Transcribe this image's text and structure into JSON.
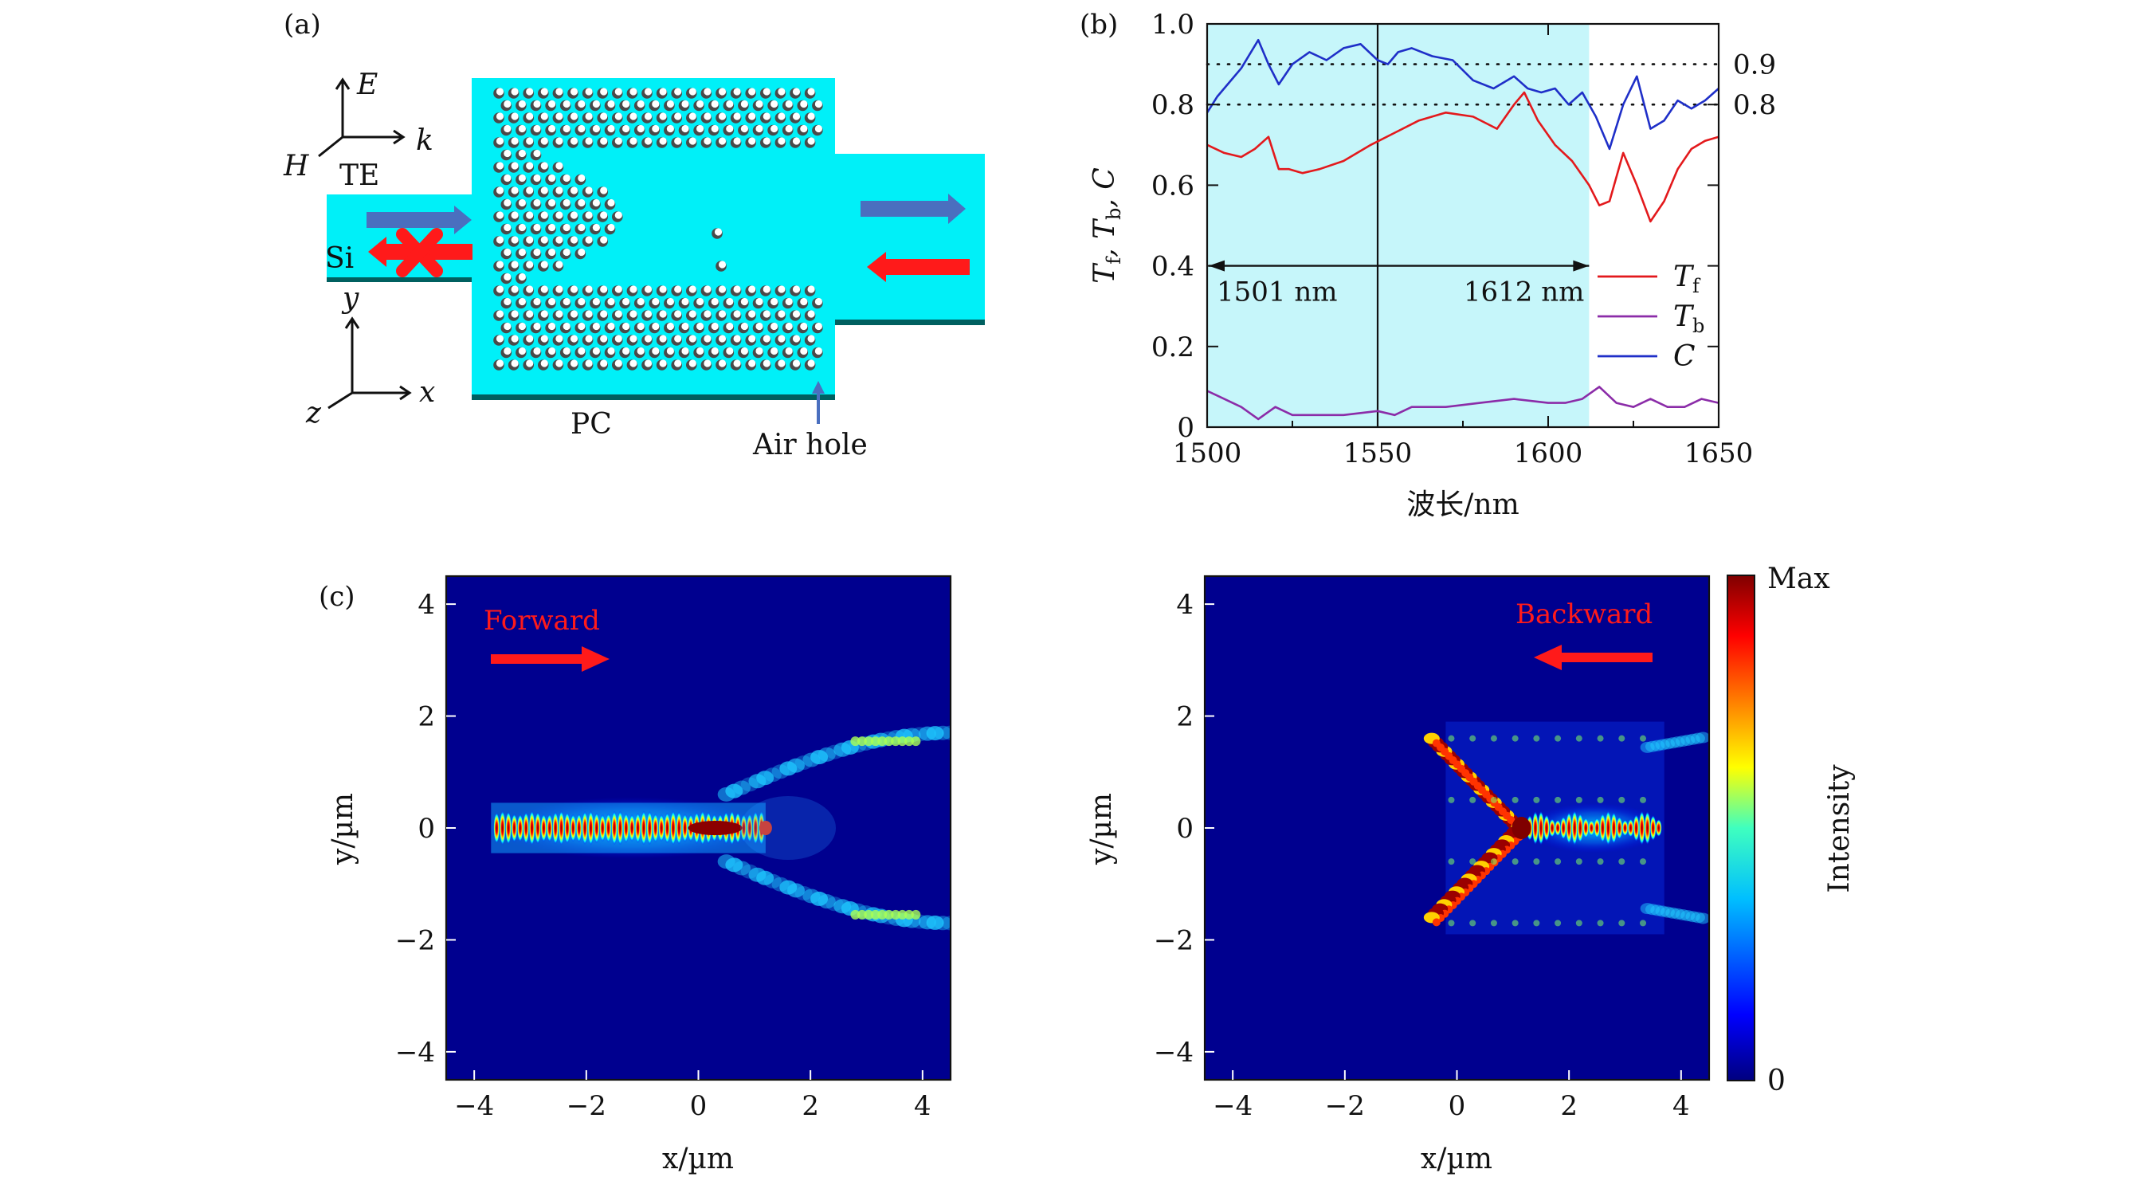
{
  "panels": {
    "a": "(a)",
    "b": "(b)",
    "c": "(c)"
  },
  "schematic": {
    "axis_E": "E",
    "axis_k": "k",
    "axis_H": "H",
    "mode": "TE",
    "si_label": "Si",
    "axis_y": "y",
    "axis_x": "x",
    "axis_z": "z",
    "pc_label": "PC",
    "air_hole_label": "Air hole",
    "colors": {
      "slab": "#00f0f8",
      "edge": "#006060",
      "arrow_blue": "#4a6fbf",
      "arrow_red": "#ff1a1a",
      "hole": "#444444"
    },
    "icons": [
      "forward-arrow-icon",
      "backward-arrow-icon",
      "blocked-cross-icon"
    ]
  },
  "chart_data": [
    {
      "type": "line",
      "xlabel": "波长/nm",
      "ylabel_parts": [
        "T",
        "f",
        ", T",
        "b",
        ", C"
      ],
      "xlim": [
        1500,
        1650
      ],
      "ylim": [
        0,
        1.0
      ],
      "xticks": [
        "1500",
        "1550",
        "1600",
        "1650"
      ],
      "yticks": [
        "0",
        "0.2",
        "0.4",
        "0.6",
        "0.8",
        "1.0"
      ],
      "shaded_band": {
        "from": 1500,
        "to": 1612,
        "color": "#c6f6fa"
      },
      "vline_x": 1550,
      "hlines": [
        {
          "y": 0.9,
          "label": "0.9"
        },
        {
          "y": 0.8,
          "label": "0.8"
        }
      ],
      "annotation": {
        "left": "1501 nm",
        "right": "1612 nm",
        "y": 0.4
      },
      "series": [
        {
          "name": "T",
          "sub": "f",
          "color": "#e3191c",
          "x": [
            1500,
            1505,
            1510,
            1514,
            1518,
            1521,
            1524,
            1528,
            1533,
            1540,
            1548,
            1555,
            1562,
            1570,
            1578,
            1585,
            1590,
            1593,
            1597,
            1602,
            1607,
            1612,
            1615,
            1618,
            1622,
            1626,
            1630,
            1634,
            1638,
            1642,
            1646,
            1650
          ],
          "y": [
            0.7,
            0.68,
            0.67,
            0.69,
            0.72,
            0.64,
            0.64,
            0.63,
            0.64,
            0.66,
            0.7,
            0.73,
            0.76,
            0.78,
            0.77,
            0.74,
            0.8,
            0.83,
            0.76,
            0.7,
            0.66,
            0.6,
            0.55,
            0.56,
            0.68,
            0.6,
            0.51,
            0.56,
            0.64,
            0.69,
            0.71,
            0.72
          ]
        },
        {
          "name": "T",
          "sub": "b",
          "color": "#8b2ca8",
          "x": [
            1500,
            1505,
            1510,
            1515,
            1520,
            1525,
            1530,
            1540,
            1550,
            1555,
            1560,
            1570,
            1580,
            1590,
            1600,
            1605,
            1610,
            1615,
            1620,
            1625,
            1630,
            1635,
            1640,
            1645,
            1650
          ],
          "y": [
            0.09,
            0.07,
            0.05,
            0.02,
            0.05,
            0.03,
            0.03,
            0.03,
            0.04,
            0.03,
            0.05,
            0.05,
            0.06,
            0.07,
            0.06,
            0.06,
            0.07,
            0.1,
            0.06,
            0.05,
            0.07,
            0.05,
            0.05,
            0.07,
            0.06
          ]
        },
        {
          "name": "C",
          "sub": "",
          "color": "#1f2fc8",
          "x": [
            1500,
            1503,
            1506,
            1510,
            1515,
            1518,
            1521,
            1525,
            1530,
            1535,
            1540,
            1545,
            1550,
            1553,
            1556,
            1560,
            1566,
            1572,
            1578,
            1584,
            1590,
            1594,
            1598,
            1602,
            1606,
            1610,
            1614,
            1618,
            1622,
            1626,
            1630,
            1634,
            1638,
            1642,
            1646,
            1650
          ],
          "y": [
            0.78,
            0.82,
            0.85,
            0.89,
            0.96,
            0.9,
            0.85,
            0.9,
            0.93,
            0.91,
            0.94,
            0.95,
            0.91,
            0.9,
            0.93,
            0.94,
            0.92,
            0.91,
            0.86,
            0.84,
            0.87,
            0.84,
            0.83,
            0.84,
            0.8,
            0.83,
            0.77,
            0.69,
            0.8,
            0.87,
            0.74,
            0.76,
            0.81,
            0.79,
            0.81,
            0.84
          ]
        }
      ]
    },
    {
      "type": "heatmap",
      "title": "Forward",
      "xlabel": "x/µm",
      "ylabel": "y/µm",
      "xlim": [
        -4.5,
        4.5
      ],
      "ylim": [
        -4.5,
        4.5
      ],
      "xticks": [
        "−4",
        "−2",
        "0",
        "2",
        "4"
      ],
      "yticks": [
        "−4",
        "−2",
        "0",
        "2",
        "4"
      ],
      "arrow_direction": "right"
    },
    {
      "type": "heatmap",
      "title": "Backward",
      "xlabel": "x/µm",
      "ylabel": "y/µm",
      "xlim": [
        -4.5,
        4.5
      ],
      "ylim": [
        -4.5,
        4.5
      ],
      "xticks": [
        "−4",
        "−2",
        "0",
        "2",
        "4"
      ],
      "yticks": [
        "−4",
        "−2",
        "0",
        "2",
        "4"
      ],
      "arrow_direction": "left"
    }
  ],
  "colorbar": {
    "max_label": "Max",
    "min_label": "0",
    "title": "Intensity",
    "stops": [
      "#00007f",
      "#0000ff",
      "#00bfff",
      "#3fffbf",
      "#ffff00",
      "#ff7f00",
      "#ff0000",
      "#7f0000"
    ]
  }
}
